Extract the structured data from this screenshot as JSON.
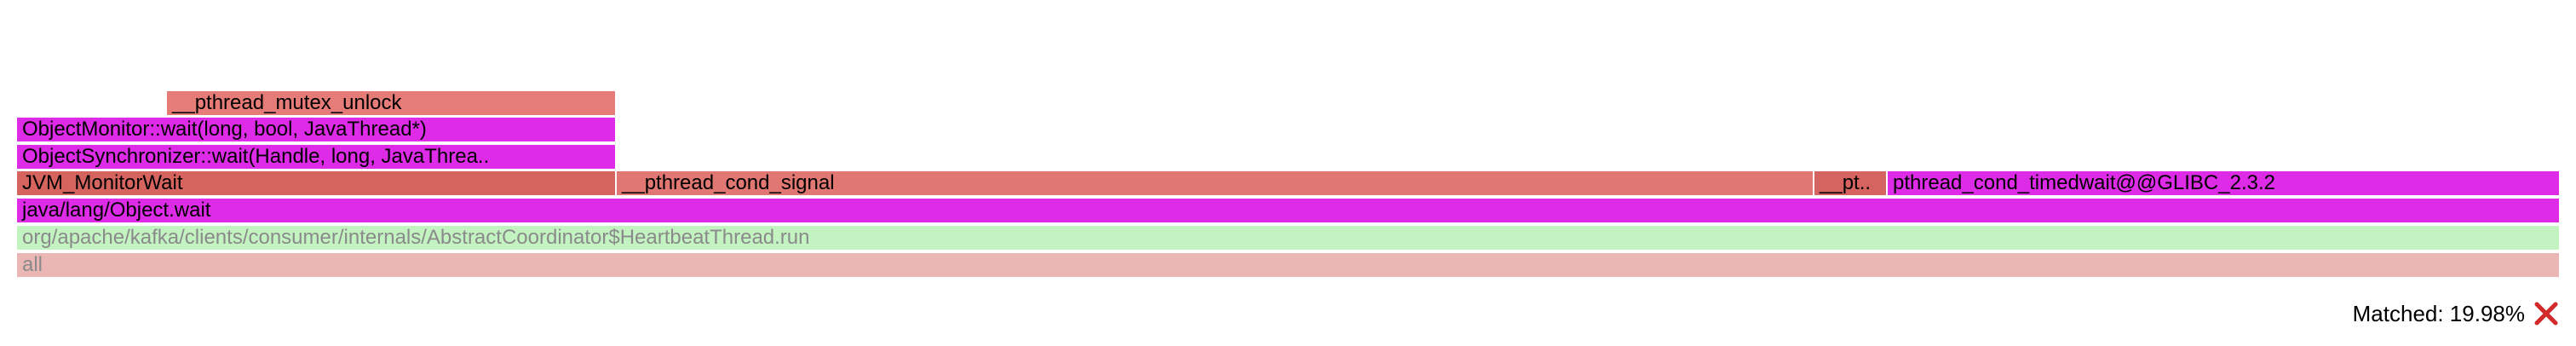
{
  "frames": {
    "unlock": {
      "label": "__pthread_mutex_unlock",
      "color": "#e57c78"
    },
    "monwait": {
      "label": "ObjectMonitor::wait(long, bool, JavaThread*)",
      "color": "#de2be8"
    },
    "syncwait": {
      "label": "ObjectSynchronizer::wait(Handle, long, JavaThrea..",
      "color": "#de2be8"
    },
    "jvmwait": {
      "label": "JVM_MonitorWait",
      "color": "#d5645f"
    },
    "signal": {
      "label": "__pthread_cond_signal",
      "color": "#e07773"
    },
    "pt": {
      "label": "__pt..",
      "color": "#d5635f"
    },
    "timedwait": {
      "label": "pthread_cond_timedwait@@GLIBC_2.3.2",
      "color": "#de2be8"
    },
    "objwait": {
      "label": "java/lang/Object.wait",
      "color": "#de2be8"
    },
    "hb": {
      "label": "org/apache/kafka/clients/consumer/internals/AbstractCoordinator$HeartbeatThread.run",
      "color": "#c4f3c2"
    },
    "all": {
      "label": "all",
      "color": "#ebb7b5"
    }
  },
  "status": {
    "matched_text": "Matched: 19.98%",
    "reset_icon": "close-icon",
    "reset_color": "#d22a2a"
  }
}
